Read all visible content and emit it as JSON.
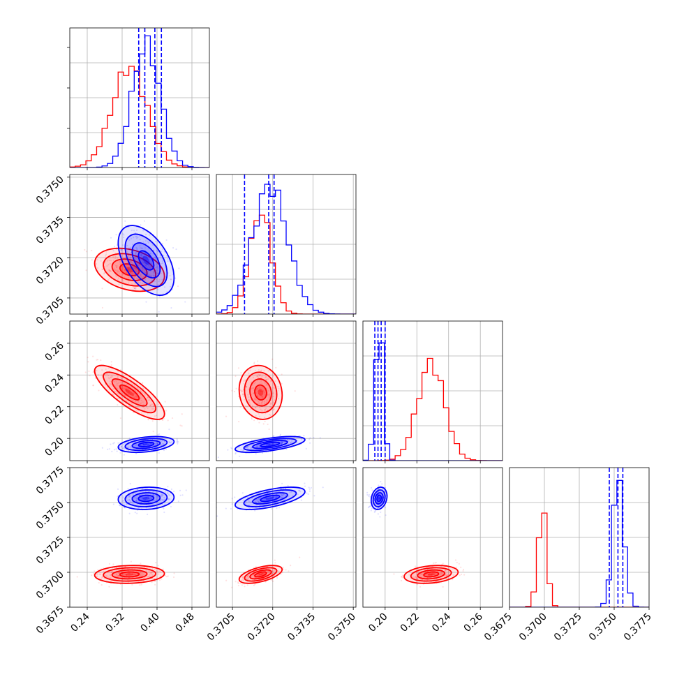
{
  "chart_data": {
    "type": "corner",
    "colors": {
      "series_a": "#ff0000",
      "series_b": "#0000ff"
    },
    "grid": true,
    "parameters": [
      {
        "range": [
          0.2,
          0.52
        ],
        "ticks": [
          0.24,
          0.32,
          0.4,
          0.48
        ],
        "tick_labels": [
          "0.24",
          "0.32",
          "0.40",
          "0.48"
        ]
      },
      {
        "range": [
          0.3699,
          0.3751
        ],
        "ticks": [
          0.3705,
          0.372,
          0.3735,
          0.375
        ],
        "tick_labels": [
          "0.3705",
          "0.3720",
          "0.3735",
          "0.3750"
        ]
      },
      {
        "range": [
          0.186,
          0.274
        ],
        "ticks": [
          0.2,
          0.22,
          0.24,
          0.26
        ],
        "tick_labels": [
          "0.20",
          "0.22",
          "0.24",
          "0.26"
        ]
      },
      {
        "range": [
          0.3675,
          0.3775
        ],
        "ticks": [
          0.3675,
          0.37,
          0.3725,
          0.375,
          0.3775
        ],
        "tick_labels": [
          "0.3675",
          "0.3700",
          "0.3725",
          "0.3750",
          "0.3775"
        ]
      }
    ],
    "series": [
      {
        "color": "#ff0000",
        "means": [
          0.337,
          0.37155,
          0.229,
          0.36985
        ],
        "sds": [
          0.04,
          0.0004,
          0.0085,
          0.00032
        ],
        "corr": {
          "1-0": -0.3,
          "2-0": -0.8,
          "2-1": -0.1,
          "3-0": 0.1,
          "3-1": 0.55,
          "3-2": 0.25
        },
        "hist_peaks": [
          0.72,
          0.74,
          0.7,
          0.7
        ]
      },
      {
        "color": "#0000ff",
        "means": [
          0.375,
          0.3719,
          0.1962,
          0.3753
        ],
        "sds": [
          0.032,
          0.00065,
          0.0025,
          0.0004
        ],
        "corr": {
          "1-0": -0.5,
          "2-0": 0.35,
          "2-1": 0.6,
          "3-0": 0.1,
          "3-1": 0.6,
          "3-2": 0.2
        },
        "hist_peaks": [
          0.88,
          0.92,
          0.97,
          0.92
        ]
      }
    ],
    "quantile_lines": {
      "color": "#0000ff",
      "values": [
        [
          0.358,
          0.372,
          0.395,
          0.41
        ],
        [
          0.37095,
          0.37185,
          0.37205
        ],
        [
          0.1935,
          0.1955,
          0.1975,
          0.2
        ],
        [
          0.37465,
          0.37527,
          0.37562
        ]
      ]
    }
  }
}
